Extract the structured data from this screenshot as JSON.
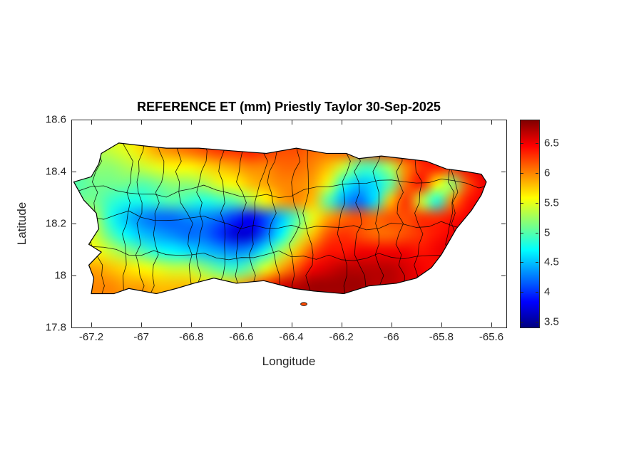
{
  "chart_data": {
    "type": "heatmap",
    "title": "REFERENCE ET (mm) Priestly Taylor 30-Sep-2025",
    "xlabel": "Longitude",
    "ylabel": "Latitude",
    "xlim": [
      -67.28,
      -65.54
    ],
    "ylim": [
      17.8,
      18.6
    ],
    "xticks": [
      -67.2,
      -67,
      -66.8,
      -66.6,
      -66.4,
      -66.2,
      -66,
      -65.8,
      -65.6
    ],
    "xtick_labels": [
      "-67.2",
      "-67",
      "-66.8",
      "-66.6",
      "-66.4",
      "-66.2",
      "-66",
      "-65.8",
      "-65.6"
    ],
    "yticks": [
      17.8,
      18,
      18.2,
      18.4,
      18.6
    ],
    "ytick_labels": [
      "17.8",
      "18",
      "18.2",
      "18.4",
      "18.6"
    ],
    "colormap": "jet",
    "clim": [
      3.4,
      6.9
    ],
    "colorbar_ticks": [
      3.5,
      4,
      4.5,
      5,
      5.5,
      6,
      6.5
    ],
    "colorbar_tick_labels": [
      "3.5",
      "4",
      "4.5",
      "5",
      "5.5",
      "6",
      "6.5"
    ],
    "axis_color": "#262626",
    "municipal_boundaries": true,
    "grid": {
      "lon0": -67.28,
      "dlon": 0.06,
      "nx": 28,
      "lat0": 18.52,
      "dlat": -0.06,
      "ny": 12,
      "values": [
        [
          5.3,
          5.3,
          5.4,
          5.5,
          5.6,
          5.8,
          6.0,
          6.1,
          6.2,
          6.2,
          6.3,
          6.3,
          6.4,
          6.4,
          6.3,
          6.3,
          6.2,
          6.2,
          6.3,
          6.3,
          6.4,
          6.4,
          6.5,
          6.5,
          6.4,
          6.4,
          6.4,
          6.4
        ],
        [
          5.2,
          5.2,
          5.3,
          5.4,
          5.5,
          5.7,
          5.9,
          6.0,
          6.1,
          6.2,
          6.3,
          6.3,
          6.4,
          6.3,
          6.2,
          6.2,
          6.1,
          6.1,
          6.2,
          6.2,
          6.3,
          6.4,
          6.5,
          6.5,
          6.4,
          6.3,
          6.4,
          6.5
        ],
        [
          5.1,
          5.1,
          5.2,
          5.2,
          5.3,
          5.4,
          5.5,
          5.6,
          5.6,
          5.7,
          5.8,
          5.9,
          6.0,
          6.0,
          6.1,
          6.1,
          6.0,
          5.8,
          5.4,
          5.0,
          5.0,
          5.3,
          6.0,
          6.3,
          6.4,
          6.3,
          6.5,
          6.6
        ],
        [
          5.0,
          5.0,
          5.1,
          5.1,
          5.1,
          5.0,
          5.1,
          5.2,
          5.2,
          5.3,
          5.5,
          5.6,
          5.8,
          5.9,
          6.0,
          6.0,
          5.9,
          5.5,
          4.8,
          4.5,
          4.6,
          5.0,
          6.1,
          6.4,
          5.6,
          5.2,
          6.2,
          6.5
        ],
        [
          5.0,
          5.1,
          5.1,
          4.9,
          4.8,
          4.8,
          4.9,
          5.0,
          4.9,
          4.8,
          4.9,
          5.0,
          5.3,
          5.6,
          5.9,
          6.0,
          5.8,
          5.0,
          4.4,
          4.2,
          4.6,
          5.8,
          6.3,
          5.4,
          4.8,
          6.0,
          6.4,
          6.5
        ],
        [
          5.3,
          5.4,
          5.3,
          4.8,
          4.5,
          4.3,
          4.2,
          4.2,
          4.3,
          4.3,
          4.2,
          4.0,
          3.8,
          4.1,
          4.5,
          5.0,
          5.5,
          5.9,
          6.1,
          6.2,
          6.1,
          6.2,
          6.2,
          6.3,
          6.3,
          6.4,
          6.5,
          6.6
        ],
        [
          5.5,
          5.5,
          5.4,
          5.0,
          4.7,
          4.5,
          4.4,
          4.3,
          4.2,
          4.2,
          4.0,
          3.7,
          3.7,
          4.2,
          4.7,
          5.3,
          5.8,
          6.2,
          6.3,
          6.2,
          6.1,
          6.1,
          6.2,
          6.3,
          6.4,
          6.5,
          6.6,
          6.6
        ],
        [
          5.6,
          5.6,
          5.6,
          5.4,
          5.2,
          5.0,
          4.8,
          4.7,
          4.6,
          4.5,
          4.4,
          4.3,
          4.4,
          4.8,
          5.3,
          5.8,
          6.2,
          6.4,
          6.4,
          6.5,
          6.5,
          6.5,
          6.5,
          6.4,
          6.5,
          6.6,
          6.6,
          6.6
        ],
        [
          5.8,
          5.9,
          5.9,
          5.8,
          5.7,
          5.6,
          5.5,
          5.4,
          5.4,
          5.2,
          5.0,
          4.9,
          5.1,
          5.5,
          5.9,
          6.2,
          6.5,
          6.6,
          6.7,
          6.7,
          6.7,
          6.7,
          6.6,
          6.5,
          6.4,
          6.4,
          6.4,
          6.4
        ],
        [
          5.9,
          6.0,
          6.0,
          6.0,
          5.9,
          5.9,
          5.8,
          5.8,
          5.8,
          5.7,
          5.7,
          5.8,
          6.0,
          6.3,
          6.6,
          6.7,
          6.8,
          6.8,
          6.8,
          6.8,
          6.7,
          6.7,
          6.6,
          6.5,
          6.4,
          6.3,
          6.3,
          6.3
        ],
        [
          5.9,
          6.0,
          6.0,
          6.0,
          6.0,
          6.0,
          5.9,
          5.9,
          5.9,
          5.9,
          5.9,
          6.0,
          6.2,
          6.4,
          6.6,
          6.7,
          6.7,
          6.7,
          6.7,
          6.7,
          6.6,
          6.6,
          6.5,
          6.4,
          6.3,
          6.3,
          6.2,
          6.2
        ],
        [
          5.9,
          6.0,
          6.0,
          6.0,
          6.0,
          6.0,
          5.9,
          5.9,
          5.9,
          5.9,
          5.9,
          6.0,
          6.2,
          6.4,
          6.5,
          6.6,
          6.6,
          6.6,
          6.6,
          6.6,
          6.5,
          6.5,
          6.4,
          6.4,
          6.3,
          6.3,
          6.2,
          6.2
        ]
      ]
    },
    "coastline": [
      [
        -67.27,
        18.36
      ],
      [
        -67.2,
        18.38
      ],
      [
        -67.17,
        18.43
      ],
      [
        -67.16,
        18.47
      ],
      [
        -67.09,
        18.51
      ],
      [
        -67.0,
        18.5
      ],
      [
        -66.9,
        18.49
      ],
      [
        -66.77,
        18.49
      ],
      [
        -66.64,
        18.48
      ],
      [
        -66.5,
        18.47
      ],
      [
        -66.38,
        18.49
      ],
      [
        -66.26,
        18.47
      ],
      [
        -66.18,
        18.47
      ],
      [
        -66.13,
        18.45
      ],
      [
        -66.04,
        18.46
      ],
      [
        -65.95,
        18.45
      ],
      [
        -65.86,
        18.44
      ],
      [
        -65.78,
        18.41
      ],
      [
        -65.7,
        18.4
      ],
      [
        -65.64,
        18.39
      ],
      [
        -65.62,
        18.36
      ],
      [
        -65.64,
        18.31
      ],
      [
        -65.68,
        18.25
      ],
      [
        -65.74,
        18.18
      ],
      [
        -65.77,
        18.13
      ],
      [
        -65.8,
        18.08
      ],
      [
        -65.84,
        18.03
      ],
      [
        -65.9,
        17.99
      ],
      [
        -65.98,
        17.97
      ],
      [
        -66.09,
        17.96
      ],
      [
        -66.19,
        17.93
      ],
      [
        -66.31,
        17.94
      ],
      [
        -66.39,
        17.95
      ],
      [
        -66.51,
        17.98
      ],
      [
        -66.62,
        17.97
      ],
      [
        -66.71,
        17.99
      ],
      [
        -66.79,
        17.97
      ],
      [
        -66.86,
        17.95
      ],
      [
        -66.94,
        17.93
      ],
      [
        -67.05,
        17.95
      ],
      [
        -67.11,
        17.93
      ],
      [
        -67.2,
        17.93
      ],
      [
        -67.19,
        17.99
      ],
      [
        -67.21,
        18.04
      ],
      [
        -67.16,
        18.09
      ],
      [
        -67.21,
        18.12
      ],
      [
        -67.17,
        18.18
      ],
      [
        -67.18,
        18.24
      ],
      [
        -67.23,
        18.29
      ]
    ],
    "islets": [
      {
        "lon": -66.35,
        "lat": 17.89,
        "value": 6.2
      }
    ]
  }
}
